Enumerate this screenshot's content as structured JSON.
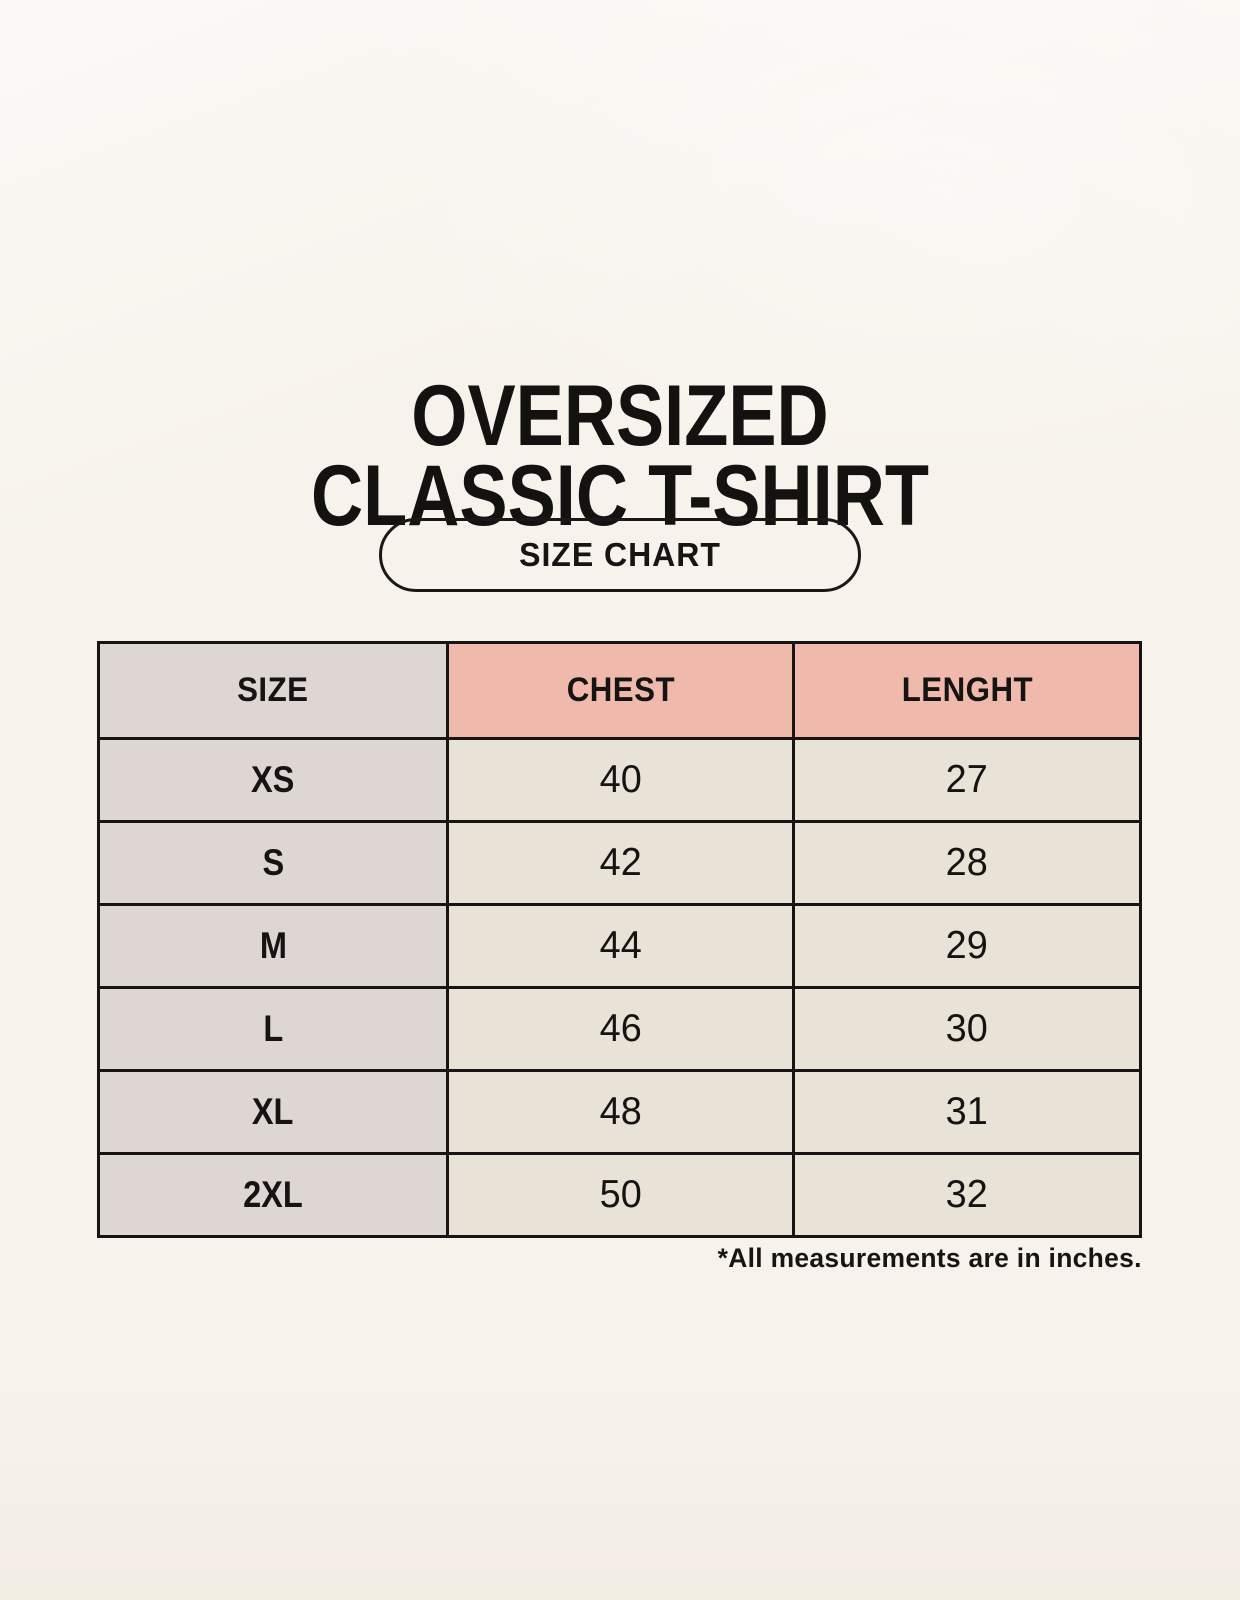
{
  "page": {
    "background_color": "#f7f3ec",
    "border_color": "#161514",
    "accent_pink": "#efb9ab",
    "gray_cell_color": "#ddd6d2",
    "cream_cell_color": "#e9e2d6"
  },
  "title": {
    "line1": "OVERSIZED",
    "line2": "CLASSIC T-SHIRT"
  },
  "size_chart_button": {
    "label": "SIZE CHART"
  },
  "table": {
    "headers": {
      "size": "SIZE",
      "chest": "CHEST",
      "length": "LENGHT"
    },
    "rows": [
      {
        "size": "XS",
        "chest": "40",
        "length": "27"
      },
      {
        "size": "S",
        "chest": "42",
        "length": "28"
      },
      {
        "size": "M",
        "chest": "44",
        "length": "29"
      },
      {
        "size": "L",
        "chest": "46",
        "length": "30"
      },
      {
        "size": "XL",
        "chest": "48",
        "length": "31"
      },
      {
        "size": "2XL",
        "chest": "50",
        "length": "32"
      }
    ]
  },
  "footnote": "*All measurements are in inches."
}
